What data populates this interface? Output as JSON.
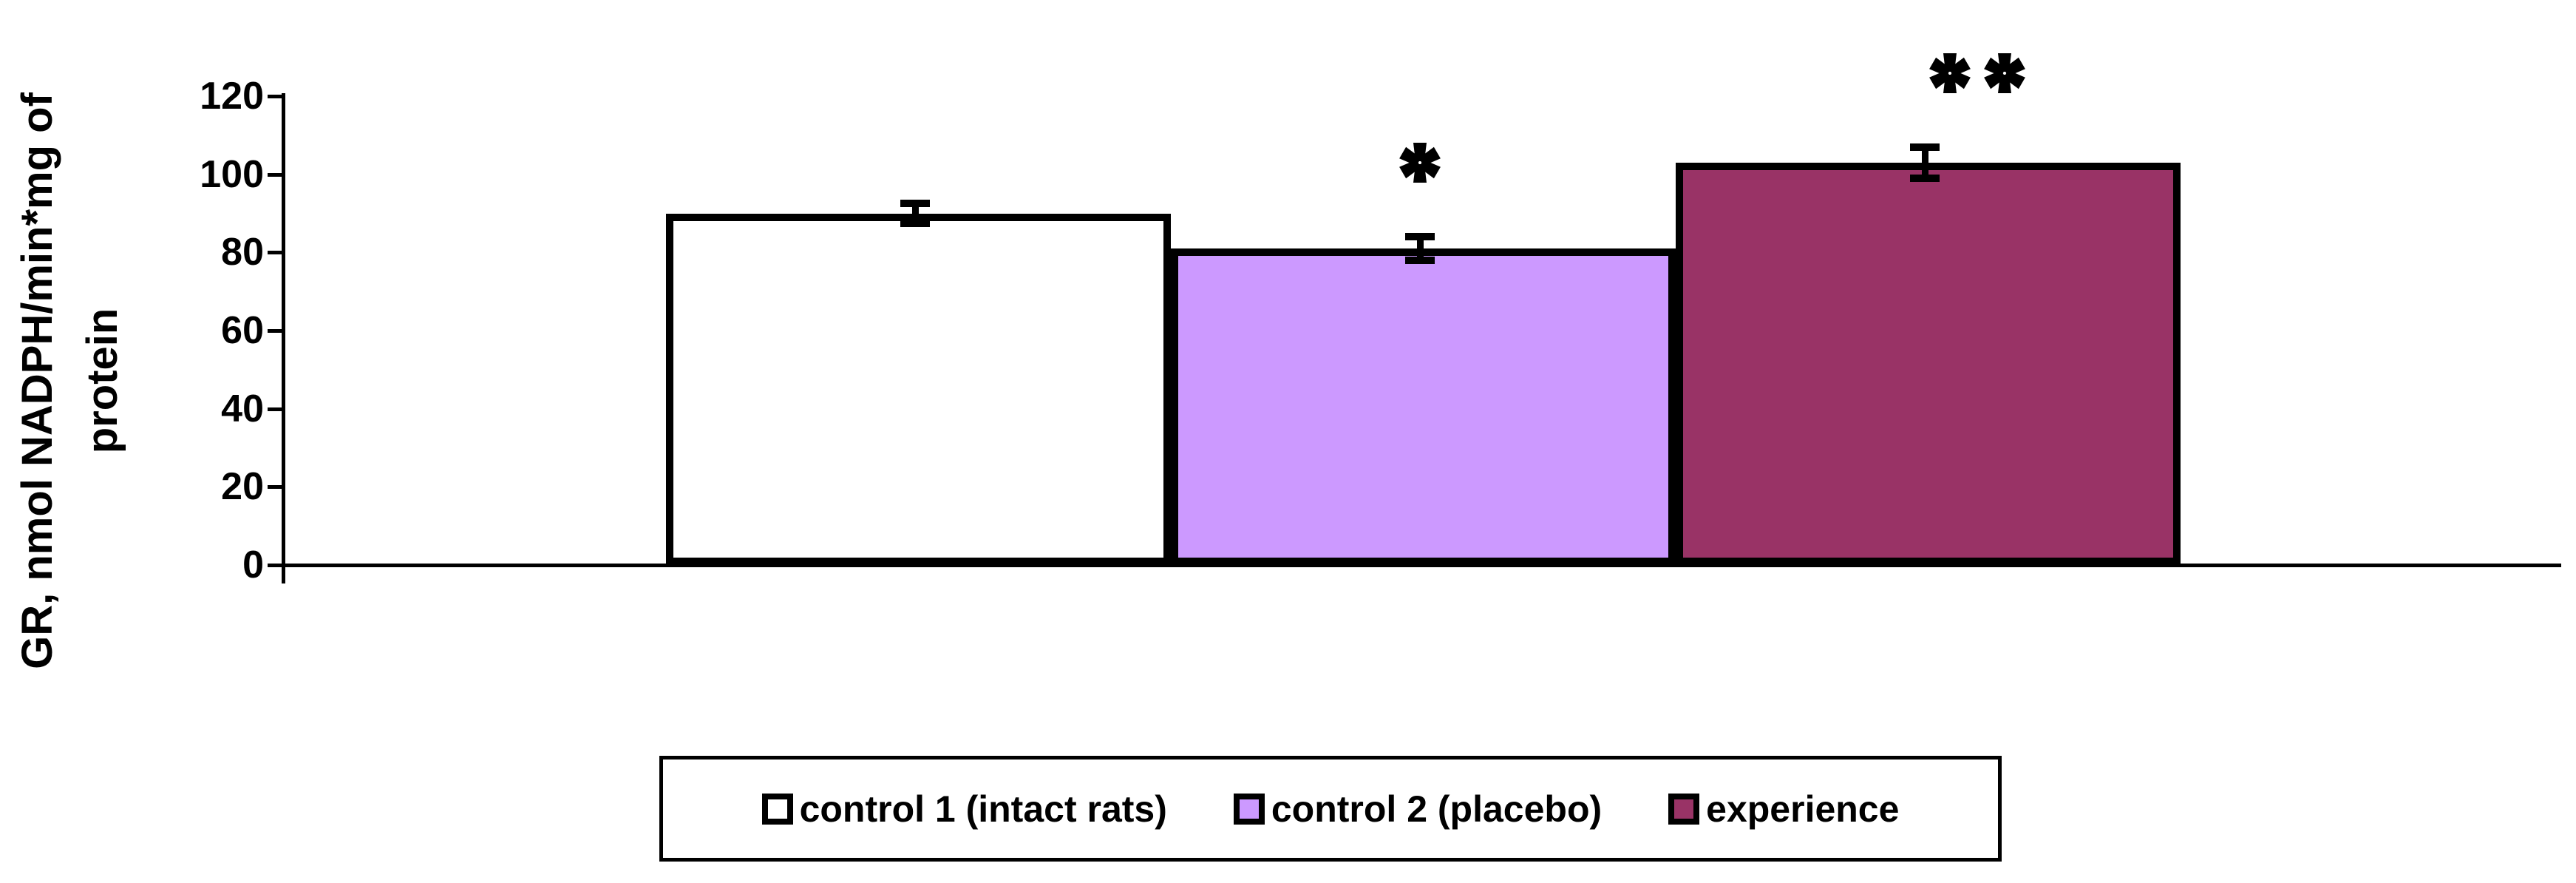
{
  "chart_data": {
    "type": "bar",
    "title": "",
    "ylabel": "GR, nmol NADPH/min*mg of protein",
    "ylabel_lines": [
      "GR, nmol NADPH/min*mg of",
      "protein"
    ],
    "xlabel": "",
    "categories": [
      "control 1 (intact rats)",
      "control 2 (placebo)",
      "experience"
    ],
    "values": [
      90,
      81,
      103
    ],
    "errors": [
      2.5,
      3,
      4
    ],
    "significance": [
      "",
      "*",
      "**"
    ],
    "bar_colors": [
      "#FFFFFF",
      "#CC99FF",
      "#993366"
    ],
    "bar_border_color": "#000000",
    "ylim": [
      0,
      120
    ],
    "yticks": [
      0,
      20,
      40,
      60,
      80,
      100,
      120
    ],
    "grid": false,
    "legend_position": "bottom"
  },
  "colors": {
    "background": "#FFFFFF",
    "axis": "#000000",
    "text": "#000000",
    "control1_fill": "#FFFFFF",
    "control2_fill": "#CC99FF",
    "experience_fill": "#993366"
  }
}
